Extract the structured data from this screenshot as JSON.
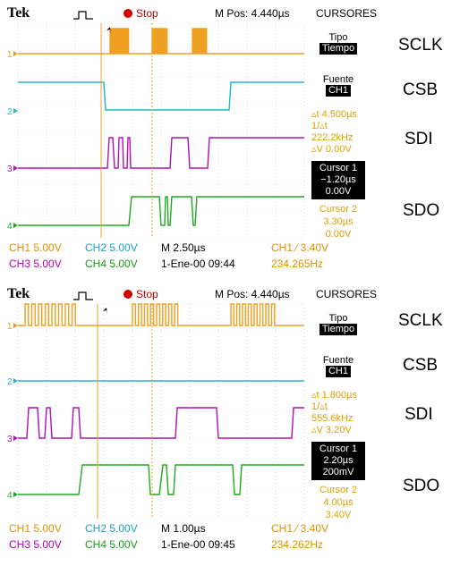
{
  "panels": [
    {
      "brand": "Tek",
      "run_state": "Stop",
      "m_pos": "M Pos: 4.440µs",
      "menu_title": "CURSORES",
      "tipo_label": "Tipo",
      "tipo_value": "Tiempo",
      "fuente_label": "Fuente",
      "fuente_value": "CH1",
      "delta_time": "▵t 4.500µs",
      "inv_delta": "1/▵t 222.2kHz",
      "delta_v": "▵V 0.00V",
      "cursor1_title": "Cursor 1",
      "cursor1_time": "−1.20µs",
      "cursor1_volt": "0.00V",
      "cursor2_title": "Cursor 2",
      "cursor2_time": "3.30µs",
      "cursor2_volt": "0.00V",
      "ch1": "CH1  5.00V",
      "ch2": "CH2  5.00V",
      "ch3": "CH3  5.00V",
      "ch4": "CH4  5.00V",
      "timebase": "M 2.50µs",
      "trigger": "CH1 ∕ 3.40V",
      "freq": "234.265Hz",
      "datetime": "1-Ene-00 09:44"
    },
    {
      "brand": "Tek",
      "run_state": "Stop",
      "m_pos": "M Pos: 4.440µs",
      "menu_title": "CURSORES",
      "tipo_label": "Tipo",
      "tipo_value": "Tiempo",
      "fuente_label": "Fuente",
      "fuente_value": "CH1",
      "delta_time": "▵t 1.800µs",
      "inv_delta": "1/▵t 555.6kHz",
      "delta_v": "▵V 3.20V",
      "cursor1_title": "Cursor 1",
      "cursor1_time": "2.20µs",
      "cursor1_volt": "200mV",
      "cursor2_title": "Cursor 2",
      "cursor2_time": "4.00µs",
      "cursor2_volt": "3.40V",
      "ch1": "CH1  5.00V",
      "ch2": "CH2  5.00V",
      "ch3": "CH3  5.00V",
      "ch4": "CH4  5.00V",
      "timebase": "M 1.00µs",
      "trigger": "CH1 ∕ 3.40V",
      "freq": "234.262Hz",
      "datetime": "1-Ene-00 09:45"
    }
  ],
  "signal_labels": [
    "SCLK",
    "CSB",
    "SDI",
    "SDO"
  ],
  "channel_markers": [
    "1",
    "2",
    "3",
    "4"
  ],
  "colors": {
    "ch1": "#f0a020",
    "ch2": "#20b8c8",
    "ch3": "#b010b0",
    "ch4": "#20a820",
    "cursor": "#f0a020",
    "grid": "#c8c8c8"
  }
}
